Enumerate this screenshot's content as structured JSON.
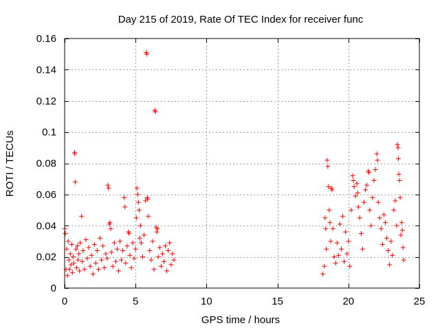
{
  "chart_data": {
    "type": "scatter",
    "title": "Day 215 of 2019, Rate Of TEC Index for receiver func",
    "xlabel": "GPS time / hours",
    "ylabel": "ROTI / TECUs",
    "xlim": [
      0,
      25
    ],
    "ylim": [
      0,
      0.16
    ],
    "xticks": [
      0,
      5,
      10,
      15,
      20,
      25
    ],
    "xtick_labels": [
      "0",
      "5",
      "10",
      "15",
      "20",
      "25"
    ],
    "yticks": [
      0,
      0.02,
      0.04,
      0.06,
      0.08,
      0.1,
      0.12,
      0.14,
      0.16
    ],
    "ytick_labels": [
      "0",
      "0.02",
      "0.04",
      "0.06",
      "0.08",
      "0.1",
      "0.12",
      "0.14",
      "0.16"
    ],
    "grid": true,
    "marker": "+",
    "series": [
      {
        "name": "ROTI",
        "color": "#ff0000",
        "points": [
          [
            0.0,
            0.038
          ],
          [
            0.05,
            0.035
          ],
          [
            0.1,
            0.012
          ],
          [
            0.15,
            0.025
          ],
          [
            0.2,
            0.008
          ],
          [
            0.25,
            0.03
          ],
          [
            0.3,
            0.018
          ],
          [
            0.35,
            0.012
          ],
          [
            0.4,
            0.022
          ],
          [
            0.45,
            0.015
          ],
          [
            0.5,
            0.028
          ],
          [
            0.55,
            0.01
          ],
          [
            0.6,
            0.02
          ],
          [
            0.65,
            0.016
          ],
          [
            0.7,
            0.087
          ],
          [
            0.72,
            0.086
          ],
          [
            0.75,
            0.068
          ],
          [
            0.8,
            0.025
          ],
          [
            0.85,
            0.013
          ],
          [
            0.9,
            0.027
          ],
          [
            0.95,
            0.018
          ],
          [
            1.0,
            0.022
          ],
          [
            1.05,
            0.011
          ],
          [
            1.1,
            0.029
          ],
          [
            1.2,
            0.046
          ],
          [
            1.25,
            0.017
          ],
          [
            1.3,
            0.024
          ],
          [
            1.4,
            0.012
          ],
          [
            1.5,
            0.031
          ],
          [
            1.6,
            0.019
          ],
          [
            1.7,
            0.026
          ],
          [
            1.8,
            0.014
          ],
          [
            1.9,
            0.021
          ],
          [
            2.0,
            0.009
          ],
          [
            2.1,
            0.028
          ],
          [
            2.2,
            0.016
          ],
          [
            2.3,
            0.024
          ],
          [
            2.4,
            0.012
          ],
          [
            2.5,
            0.032
          ],
          [
            2.6,
            0.018
          ],
          [
            2.7,
            0.027
          ],
          [
            2.8,
            0.013
          ],
          [
            2.9,
            0.022
          ],
          [
            3.0,
            0.019
          ],
          [
            3.05,
            0.066
          ],
          [
            3.1,
            0.064
          ],
          [
            3.15,
            0.041
          ],
          [
            3.2,
            0.042
          ],
          [
            3.25,
            0.038
          ],
          [
            3.3,
            0.023
          ],
          [
            3.4,
            0.014
          ],
          [
            3.5,
            0.029
          ],
          [
            3.6,
            0.017
          ],
          [
            3.7,
            0.025
          ],
          [
            3.8,
            0.011
          ],
          [
            3.9,
            0.03
          ],
          [
            4.0,
            0.018
          ],
          [
            4.1,
            0.024
          ],
          [
            4.2,
            0.058
          ],
          [
            4.25,
            0.052
          ],
          [
            4.3,
            0.016
          ],
          [
            4.4,
            0.027
          ],
          [
            4.5,
            0.036
          ],
          [
            4.55,
            0.035
          ],
          [
            4.6,
            0.021
          ],
          [
            4.7,
            0.013
          ],
          [
            4.8,
            0.029
          ],
          [
            4.9,
            0.019
          ],
          [
            5.0,
            0.025
          ],
          [
            5.05,
            0.045
          ],
          [
            5.1,
            0.064
          ],
          [
            5.15,
            0.06
          ],
          [
            5.2,
            0.055
          ],
          [
            5.25,
            0.05
          ],
          [
            5.3,
            0.032
          ],
          [
            5.35,
            0.04
          ],
          [
            5.4,
            0.029
          ],
          [
            5.5,
            0.02
          ],
          [
            5.6,
            0.034
          ],
          [
            5.7,
            0.056
          ],
          [
            5.75,
            0.151
          ],
          [
            5.8,
            0.15
          ],
          [
            5.82,
            0.058
          ],
          [
            5.85,
            0.057
          ],
          [
            5.9,
            0.046
          ],
          [
            6.0,
            0.024
          ],
          [
            6.1,
            0.018
          ],
          [
            6.2,
            0.03
          ],
          [
            6.3,
            0.012
          ],
          [
            6.35,
            0.114
          ],
          [
            6.4,
            0.113
          ],
          [
            6.45,
            0.039
          ],
          [
            6.5,
            0.036
          ],
          [
            6.55,
            0.038
          ],
          [
            6.6,
            0.02
          ],
          [
            6.7,
            0.026
          ],
          [
            6.8,
            0.014
          ],
          [
            6.9,
            0.022
          ],
          [
            7.0,
            0.017
          ],
          [
            7.1,
            0.027
          ],
          [
            7.2,
            0.011
          ],
          [
            7.3,
            0.024
          ],
          [
            7.4,
            0.029
          ],
          [
            7.5,
            0.015
          ],
          [
            7.6,
            0.022
          ],
          [
            7.7,
            0.018
          ],
          [
            18.2,
            0.009
          ],
          [
            18.3,
            0.014
          ],
          [
            18.35,
            0.045
          ],
          [
            18.4,
            0.038
          ],
          [
            18.45,
            0.025
          ],
          [
            18.5,
            0.082
          ],
          [
            18.55,
            0.078
          ],
          [
            18.6,
            0.065
          ],
          [
            18.65,
            0.05
          ],
          [
            18.7,
            0.042
          ],
          [
            18.75,
            0.03
          ],
          [
            18.8,
            0.064
          ],
          [
            18.85,
            0.063
          ],
          [
            18.9,
            0.038
          ],
          [
            19.0,
            0.02
          ],
          [
            19.1,
            0.016
          ],
          [
            19.2,
            0.029
          ],
          [
            19.3,
            0.021
          ],
          [
            19.4,
            0.041
          ],
          [
            19.5,
            0.025
          ],
          [
            19.6,
            0.046
          ],
          [
            19.7,
            0.017
          ],
          [
            19.8,
            0.036
          ],
          [
            19.9,
            0.022
          ],
          [
            20.0,
            0.03
          ],
          [
            20.1,
            0.014
          ],
          [
            20.2,
            0.05
          ],
          [
            20.3,
            0.072
          ],
          [
            20.35,
            0.069
          ],
          [
            20.4,
            0.065
          ],
          [
            20.5,
            0.059
          ],
          [
            20.6,
            0.067
          ],
          [
            20.65,
            0.061
          ],
          [
            20.7,
            0.052
          ],
          [
            20.8,
            0.045
          ],
          [
            20.9,
            0.035
          ],
          [
            21.0,
            0.025
          ],
          [
            21.1,
            0.055
          ],
          [
            21.2,
            0.063
          ],
          [
            21.3,
            0.066
          ],
          [
            21.4,
            0.075
          ],
          [
            21.45,
            0.074
          ],
          [
            21.5,
            0.05
          ],
          [
            21.6,
            0.04
          ],
          [
            21.7,
            0.058
          ],
          [
            21.8,
            0.069
          ],
          [
            21.9,
            0.076
          ],
          [
            22.0,
            0.086
          ],
          [
            22.05,
            0.082
          ],
          [
            22.1,
            0.055
          ],
          [
            22.2,
            0.045
          ],
          [
            22.3,
            0.038
          ],
          [
            22.4,
            0.028
          ],
          [
            22.5,
            0.047
          ],
          [
            22.6,
            0.042
          ],
          [
            22.7,
            0.032
          ],
          [
            22.8,
            0.024
          ],
          [
            22.9,
            0.015
          ],
          [
            23.0,
            0.03
          ],
          [
            23.1,
            0.021
          ],
          [
            23.2,
            0.05
          ],
          [
            23.3,
            0.056
          ],
          [
            23.4,
            0.04
          ],
          [
            23.45,
            0.092
          ],
          [
            23.5,
            0.09
          ],
          [
            23.52,
            0.083
          ],
          [
            23.55,
            0.073
          ],
          [
            23.6,
            0.069
          ],
          [
            23.65,
            0.058
          ],
          [
            23.7,
            0.034
          ],
          [
            23.75,
            0.042
          ],
          [
            23.8,
            0.037
          ],
          [
            23.85,
            0.026
          ],
          [
            23.9,
            0.018
          ]
        ]
      }
    ]
  }
}
